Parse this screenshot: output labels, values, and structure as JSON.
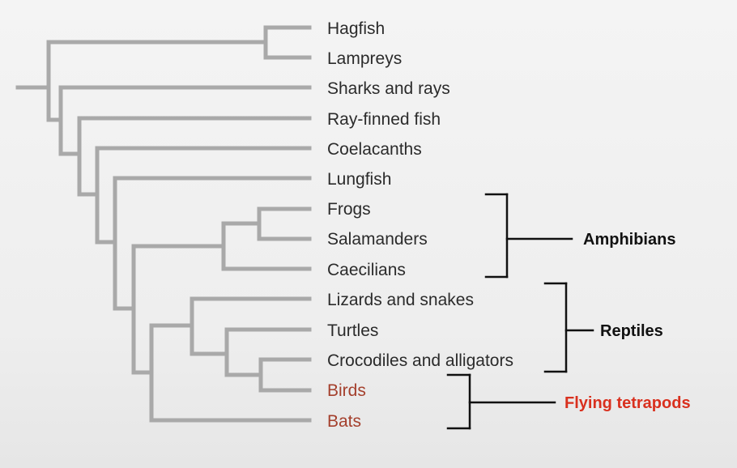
{
  "taxa": [
    {
      "label": "Hagfish"
    },
    {
      "label": "Lampreys"
    },
    {
      "label": "Sharks and rays"
    },
    {
      "label": "Ray-finned fish"
    },
    {
      "label": "Coelacanths"
    },
    {
      "label": "Lungfish"
    },
    {
      "label": "Frogs"
    },
    {
      "label": "Salamanders"
    },
    {
      "label": "Caecilians"
    },
    {
      "label": "Lizards and snakes"
    },
    {
      "label": "Turtles"
    },
    {
      "label": "Crocodiles and alligators"
    },
    {
      "label": "Birds"
    },
    {
      "label": "Bats"
    }
  ],
  "groups": {
    "amphibians": {
      "label": "Amphibians"
    },
    "reptiles": {
      "label": "Reptiles"
    },
    "flying": {
      "label": "Flying tetrapods"
    }
  },
  "colors": {
    "branch": "#a9a9a9",
    "bracket": "#111111",
    "highlight_text": "#a43f2c",
    "highlight_label": "#d9301e"
  }
}
